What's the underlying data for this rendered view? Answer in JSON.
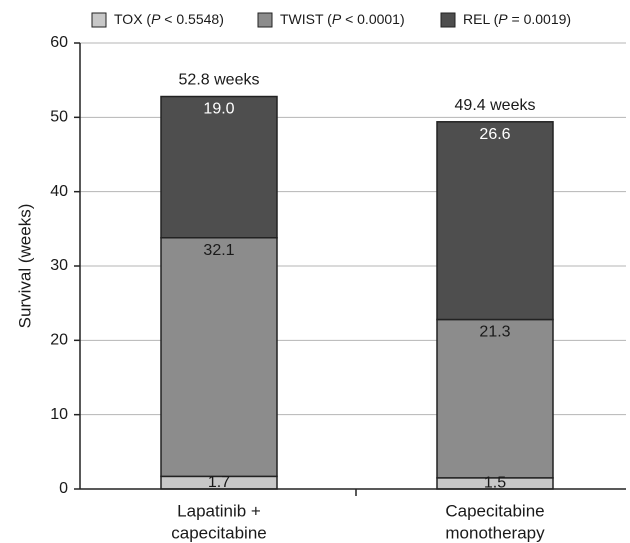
{
  "chart_data": {
    "type": "bar",
    "stacked": true,
    "categories": [
      "Lapatinib + capecitabine",
      "Capecitabine monotherapy"
    ],
    "category_lines": [
      [
        "Lapatinib +",
        "capecitabine"
      ],
      [
        "Capecitabine",
        "monotherapy"
      ]
    ],
    "series": [
      {
        "name": "TOX",
        "p_label": "P",
        "p_rel": "<",
        "p_value": "0.5548",
        "values": [
          1.7,
          1.5
        ],
        "color": "#c8c8c8"
      },
      {
        "name": "TWIST",
        "p_label": "P",
        "p_rel": "<",
        "p_value": "0.0001",
        "values": [
          32.1,
          21.3
        ],
        "color": "#8c8c8c"
      },
      {
        "name": "REL",
        "p_label": "P",
        "p_rel": "=",
        "p_value": "0.0019",
        "values": [
          19.0,
          26.6
        ],
        "color": "#4e4e4e"
      }
    ],
    "segment_labels": [
      [
        "1.7",
        "1.5"
      ],
      [
        "32.1",
        "21.3"
      ],
      [
        "19.0",
        "26.6"
      ]
    ],
    "segment_label_colors": [
      "#1a1a1a",
      "#1a1a1a",
      "#ffffff"
    ],
    "totals": [
      52.8,
      49.4
    ],
    "total_labels": [
      "52.8 weeks",
      "49.4 weeks"
    ],
    "title": "",
    "xlabel": "",
    "ylabel": "Survival (weeks)",
    "ylim": [
      0,
      60
    ],
    "yticks": [
      0,
      10,
      20,
      30,
      40,
      50,
      60
    ],
    "grid": true,
    "legend_position": "top"
  }
}
